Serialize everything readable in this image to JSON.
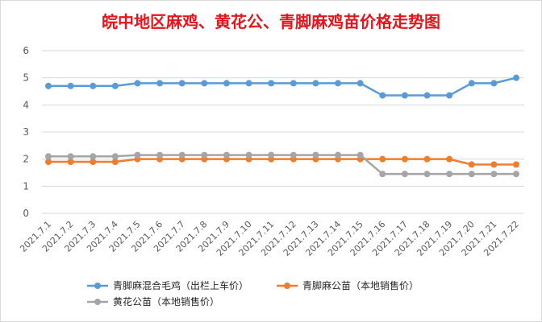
{
  "chart_data": {
    "type": "line",
    "title": "皖中地区麻鸡、黄花公、青脚麻鸡苗价格走势图",
    "categories": [
      "2021.7.1",
      "2021.7.2",
      "2021.7.3",
      "2021.7.4",
      "2021.7.5",
      "2021.7.6",
      "2021.7.7",
      "2021.7.8",
      "2021.7.9",
      "2021.7.10",
      "2021.7.11",
      "2021.7.12",
      "2021.7.13",
      "2021.7.14",
      "2021.7.15",
      "2021.7.16",
      "2021.7.17",
      "2021.7.18",
      "2021.7.19",
      "2021.7.20",
      "2021.7.21",
      "2021.7.22"
    ],
    "ylim": [
      0,
      6
    ],
    "yticks": [
      "0",
      "1",
      "2",
      "3",
      "4",
      "5",
      "6"
    ],
    "grid": true,
    "legend_position": "bottom",
    "series": [
      {
        "name": "青脚麻混合毛鸡（出栏上车价）",
        "color": "#5b9bd5",
        "values": [
          4.7,
          4.7,
          4.7,
          4.7,
          4.8,
          4.8,
          4.8,
          4.8,
          4.8,
          4.8,
          4.8,
          4.8,
          4.8,
          4.8,
          4.8,
          4.35,
          4.35,
          4.35,
          4.35,
          4.8,
          4.8,
          5.0
        ]
      },
      {
        "name": "青脚麻公苗（本地销售价）",
        "color": "#ed7d31",
        "values": [
          1.9,
          1.9,
          1.9,
          1.9,
          2.0,
          2.0,
          2.0,
          2.0,
          2.0,
          2.0,
          2.0,
          2.0,
          2.0,
          2.0,
          2.0,
          2.0,
          2.0,
          2.0,
          2.0,
          1.8,
          1.8,
          1.8
        ]
      },
      {
        "name": "黄花公苗（本地销售价）",
        "color": "#a5a5a5",
        "values": [
          2.1,
          2.1,
          2.1,
          2.1,
          2.15,
          2.15,
          2.15,
          2.15,
          2.15,
          2.15,
          2.15,
          2.15,
          2.15,
          2.15,
          2.15,
          1.45,
          1.45,
          1.45,
          1.45,
          1.45,
          1.45,
          1.45
        ]
      }
    ]
  }
}
